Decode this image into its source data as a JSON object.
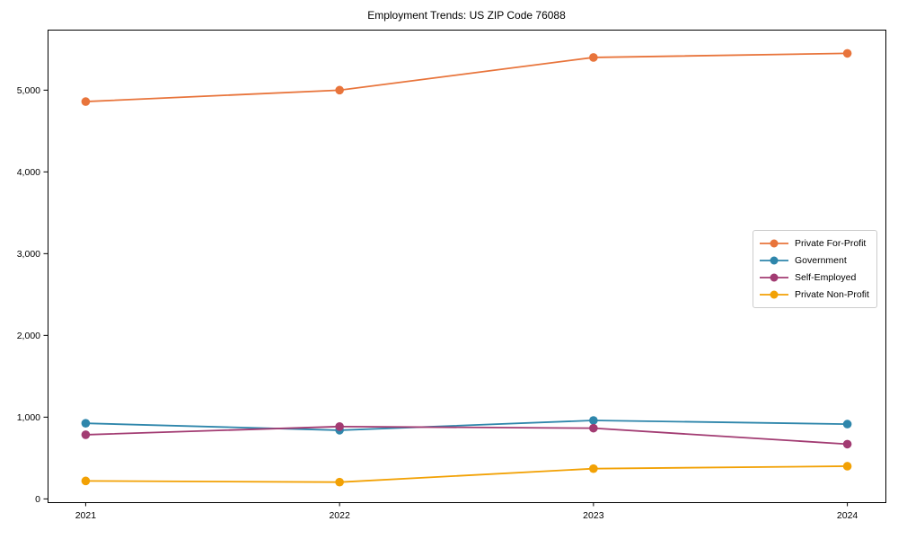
{
  "chart_data": {
    "type": "line",
    "title": "Employment Trends: US ZIP Code 76088",
    "x": [
      "2021",
      "2022",
      "2023",
      "2024"
    ],
    "series": [
      {
        "name": "Private For-Profit",
        "color": "#E8743B",
        "values": [
          4860,
          5000,
          5400,
          5450
        ]
      },
      {
        "name": "Government",
        "color": "#2E86AB",
        "values": [
          925,
          840,
          960,
          915
        ]
      },
      {
        "name": "Self-Employed",
        "color": "#A23B72",
        "values": [
          785,
          885,
          865,
          670
        ]
      },
      {
        "name": "Private Non-Profit",
        "color": "#F2A104",
        "values": [
          220,
          205,
          370,
          400
        ]
      }
    ],
    "xlabel": "",
    "ylabel": "",
    "yticks": [
      0,
      1000,
      2000,
      3000,
      4000,
      5000
    ],
    "ytick_labels": [
      "0",
      "1,000",
      "2,000",
      "3,000",
      "4,000",
      "5,000"
    ],
    "ylim": [
      -40,
      5740
    ],
    "grid": false,
    "legend": {
      "position": "center-right",
      "border": true
    },
    "axis_color": "#000000",
    "marker_radius": 4.8,
    "line_width": 1.8
  }
}
